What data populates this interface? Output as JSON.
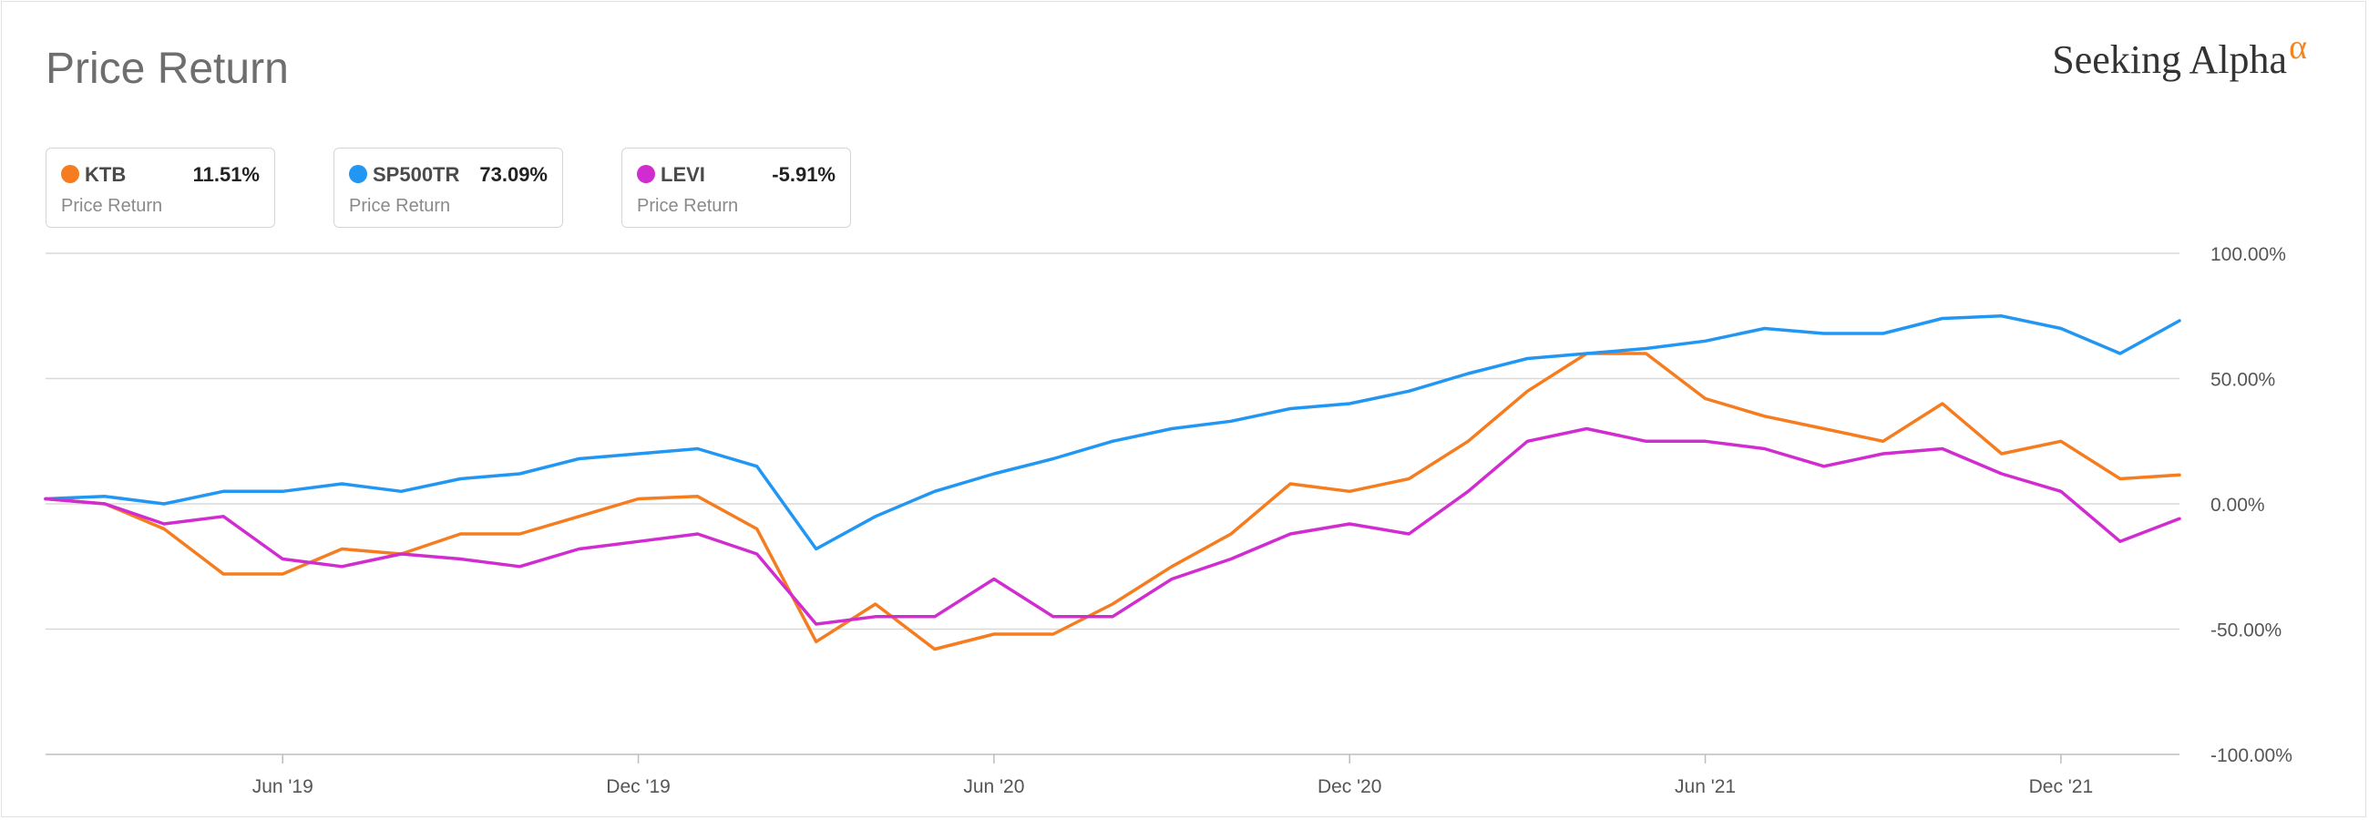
{
  "title": "Price Return",
  "brand": {
    "name": "Seeking Alpha",
    "symbol": "α",
    "accent": "#f58320"
  },
  "legend": [
    {
      "symbol": "KTB",
      "value": "11.51%",
      "label": "Price Return",
      "color": "#f57c1f"
    },
    {
      "symbol": "SP500TR",
      "value": "73.09%",
      "label": "Price Return",
      "color": "#2196f3"
    },
    {
      "symbol": "LEVI",
      "value": "-5.91%",
      "label": "Price Return",
      "color": "#d12ccf"
    }
  ],
  "chart_data": {
    "type": "line",
    "x_unit": "month",
    "xlim": [
      "2019-02",
      "2022-02"
    ],
    "ylim": [
      -100,
      100
    ],
    "y_ticks": [
      {
        "value": 100,
        "label": "100.00%"
      },
      {
        "value": 50,
        "label": "50.00%"
      },
      {
        "value": 0,
        "label": "0.00%"
      },
      {
        "value": -50,
        "label": "-50.00%"
      },
      {
        "value": -100,
        "label": "-100.00%"
      }
    ],
    "x_ticks": [
      {
        "value": "2019-06",
        "label": "Jun '19"
      },
      {
        "value": "2019-12",
        "label": "Dec '19"
      },
      {
        "value": "2020-06",
        "label": "Jun '20"
      },
      {
        "value": "2020-12",
        "label": "Dec '20"
      },
      {
        "value": "2021-06",
        "label": "Jun '21"
      },
      {
        "value": "2021-12",
        "label": "Dec '21"
      }
    ],
    "grid": true,
    "series": [
      {
        "name": "KTB",
        "color": "#f57c1f",
        "x": [
          "2019-02",
          "2019-03",
          "2019-04",
          "2019-05",
          "2019-06",
          "2019-07",
          "2019-08",
          "2019-09",
          "2019-10",
          "2019-11",
          "2019-12",
          "2020-01",
          "2020-02",
          "2020-03",
          "2020-04",
          "2020-05",
          "2020-06",
          "2020-07",
          "2020-08",
          "2020-09",
          "2020-10",
          "2020-11",
          "2020-12",
          "2021-01",
          "2021-02",
          "2021-03",
          "2021-04",
          "2021-05",
          "2021-06",
          "2021-07",
          "2021-08",
          "2021-09",
          "2021-10",
          "2021-11",
          "2021-12",
          "2022-01",
          "2022-02"
        ],
        "values": [
          2,
          0,
          -10,
          -28,
          -28,
          -18,
          -20,
          -12,
          -12,
          -5,
          2,
          3,
          -10,
          -55,
          -40,
          -58,
          -52,
          -52,
          -40,
          -25,
          -12,
          8,
          5,
          10,
          25,
          45,
          60,
          60,
          42,
          35,
          30,
          25,
          40,
          20,
          25,
          10,
          11.51
        ]
      },
      {
        "name": "SP500TR",
        "color": "#2196f3",
        "x": [
          "2019-02",
          "2019-03",
          "2019-04",
          "2019-05",
          "2019-06",
          "2019-07",
          "2019-08",
          "2019-09",
          "2019-10",
          "2019-11",
          "2019-12",
          "2020-01",
          "2020-02",
          "2020-03",
          "2020-04",
          "2020-05",
          "2020-06",
          "2020-07",
          "2020-08",
          "2020-09",
          "2020-10",
          "2020-11",
          "2020-12",
          "2021-01",
          "2021-02",
          "2021-03",
          "2021-04",
          "2021-05",
          "2021-06",
          "2021-07",
          "2021-08",
          "2021-09",
          "2021-10",
          "2021-11",
          "2021-12",
          "2022-01",
          "2022-02"
        ],
        "values": [
          2,
          3,
          0,
          5,
          5,
          8,
          5,
          10,
          12,
          18,
          20,
          22,
          15,
          -18,
          -5,
          5,
          12,
          18,
          25,
          30,
          33,
          38,
          40,
          45,
          52,
          58,
          60,
          62,
          65,
          70,
          68,
          68,
          74,
          75,
          70,
          60,
          73.09
        ]
      },
      {
        "name": "LEVI",
        "color": "#d12ccf",
        "x": [
          "2019-02",
          "2019-03",
          "2019-04",
          "2019-05",
          "2019-06",
          "2019-07",
          "2019-08",
          "2019-09",
          "2019-10",
          "2019-11",
          "2019-12",
          "2020-01",
          "2020-02",
          "2020-03",
          "2020-04",
          "2020-05",
          "2020-06",
          "2020-07",
          "2020-08",
          "2020-09",
          "2020-10",
          "2020-11",
          "2020-12",
          "2021-01",
          "2021-02",
          "2021-03",
          "2021-04",
          "2021-05",
          "2021-06",
          "2021-07",
          "2021-08",
          "2021-09",
          "2021-10",
          "2021-11",
          "2021-12",
          "2022-01",
          "2022-02"
        ],
        "values": [
          2,
          0,
          -8,
          -5,
          -22,
          -25,
          -20,
          -22,
          -25,
          -18,
          -15,
          -12,
          -20,
          -48,
          -45,
          -45,
          -30,
          -45,
          -45,
          -30,
          -22,
          -12,
          -8,
          -12,
          5,
          25,
          30,
          25,
          25,
          22,
          15,
          20,
          22,
          12,
          5,
          -15,
          -5.91
        ]
      }
    ]
  }
}
